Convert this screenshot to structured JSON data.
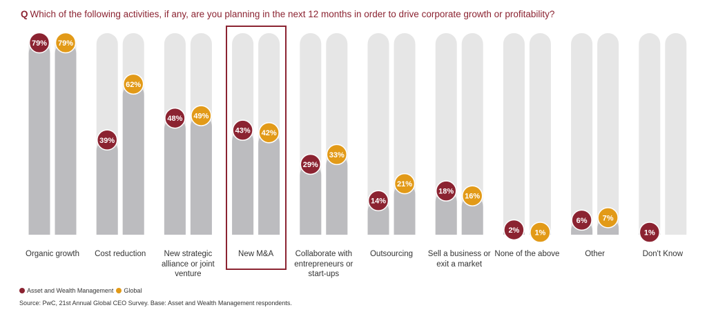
{
  "question": {
    "q": "Q",
    "text": "Which of the following activities, if any, are you planning in the next 12 months in order to drive corporate growth or profitability?"
  },
  "colors": {
    "awm": "#8b2331",
    "global": "#e29a18",
    "track": "#e6e6e6",
    "fill": "#bcbcbf"
  },
  "chart_data": {
    "type": "bar",
    "title": "Which of the following activities, if any, are you planning in the next 12 months in order to drive corporate growth or profitability?",
    "categories": [
      [
        "Organic growth"
      ],
      [
        "Cost reduction"
      ],
      [
        "New strategic",
        "alliance or joint",
        "venture"
      ],
      [
        "New M&A"
      ],
      [
        "Collaborate with",
        "entrepreneurs or",
        "start-ups"
      ],
      [
        "Outsourcing"
      ],
      [
        "Sell a business or",
        "exit a market"
      ],
      [
        "None of the above"
      ],
      [
        "Other"
      ],
      [
        "Don't Know"
      ]
    ],
    "highlighted_category": "New M&A",
    "series": [
      {
        "name": "Asset and Wealth Management",
        "values": [
          79,
          39,
          48,
          43,
          29,
          14,
          18,
          2,
          6,
          1
        ],
        "labels": [
          "79%",
          "39%",
          "48%",
          "43%",
          "29%",
          "14%",
          "18%",
          "2%",
          "6%",
          "1%"
        ]
      },
      {
        "name": "Global",
        "values": [
          79,
          62,
          49,
          42,
          33,
          21,
          16,
          1,
          7,
          null
        ],
        "labels": [
          "79%",
          "62%",
          "49%",
          "42%",
          "33%",
          "21%",
          "16%",
          "1%",
          "7%",
          ""
        ]
      }
    ],
    "ylim": [
      0,
      79
    ],
    "legend": "bottom-left"
  },
  "legend": {
    "awm": "Asset and Wealth Management",
    "global": "Global"
  },
  "source": "Source: PwC, 21st Annual Global CEO Survey. Base: Asset and Wealth Management respondents."
}
